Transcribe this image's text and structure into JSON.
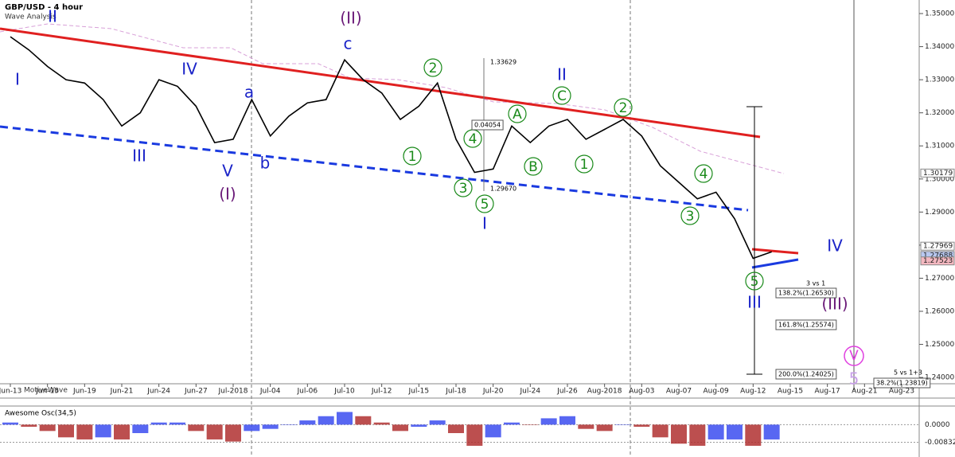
{
  "header": {
    "title": "GBP/USD - 4 hour",
    "subtitle": "Wave Analysis",
    "watermark": "MotiveWave",
    "indicator": "Awesome Osc(34,5)"
  },
  "chart_data": [
    {
      "type": "line",
      "categories": [
        "Jun-13",
        null,
        "Jun-15",
        null,
        "Jun-19",
        null,
        "Jun-21",
        null,
        "Jun-24",
        null,
        "Jun-27",
        null,
        "Jul-2018",
        null,
        "Jul-04",
        null,
        "Jul-06",
        null,
        "Jul-10",
        null,
        "Jul-12",
        null,
        "Jul-15",
        null,
        "Jul-18",
        null,
        "Jul-20",
        null,
        "Jul-24",
        null,
        "Jul-26",
        null,
        "Aug-2018",
        null,
        "Aug-03",
        null,
        "Aug-07",
        null,
        "Aug-09",
        null,
        "Aug-12",
        null,
        "Aug-15",
        null,
        "Aug-17",
        null,
        "Aug-21",
        null,
        "Aug-23"
      ],
      "series": [
        {
          "color": "#000000",
          "values": [
            1.343,
            1.339,
            1.334,
            1.33,
            1.329,
            1.324,
            1.316,
            1.32,
            1.33,
            1.328,
            1.322,
            1.311,
            1.312,
            1.324,
            1.313,
            1.319,
            1.323,
            1.324,
            1.336,
            1.33,
            1.326,
            1.318,
            1.322,
            1.329,
            1.312,
            1.302,
            1.303,
            1.316,
            1.311,
            1.316,
            1.318,
            1.312,
            1.315,
            1.318,
            1.313,
            1.304,
            1.299,
            1.294,
            1.296,
            1.288,
            1.276,
            1.278,
            null,
            null,
            null,
            null,
            null,
            null,
            null
          ]
        }
      ],
      "ylim": [
        1.2381,
        1.3541
      ],
      "yticks": [
        {
          "value": 1.24,
          "label": "1.24000"
        },
        {
          "value": 1.25,
          "label": "1.25000"
        },
        {
          "value": 1.26,
          "label": "1.26000"
        },
        {
          "value": 1.27,
          "label": "1.27000"
        },
        {
          "value": 1.28,
          "label": "1.28000"
        },
        {
          "value": 1.29,
          "label": "1.29000"
        },
        {
          "value": 1.3,
          "label": "1.30000"
        },
        {
          "value": 1.31,
          "label": "1.31000"
        },
        {
          "value": 1.32,
          "label": "1.32000"
        },
        {
          "value": 1.33,
          "label": "1.33000"
        },
        {
          "value": 1.34,
          "label": "1.34000"
        },
        {
          "value": 1.35,
          "label": "1.35000"
        }
      ],
      "price_markers": [
        1.30179,
        1.27969,
        1.27688,
        1.27523
      ],
      "price_marker_colors": [
        "#ffffff",
        "#ffffff",
        "#b8c8f0",
        "#f4b8c0"
      ],
      "annotations": [
        "I",
        "II",
        "III",
        "IV",
        "V",
        "a",
        "b",
        "c",
        "I",
        "II",
        "III",
        "IV",
        "(I)",
        "(II)",
        "(III)",
        "V",
        "5",
        "2",
        "4",
        "1",
        "3",
        "5",
        "A",
        "B",
        "C",
        "1",
        "2",
        "4",
        "3",
        "5",
        "138.2%(1.26530)",
        "161.8%(1.25574)",
        "200.0%(1.24025)",
        "3 vs 1",
        "5 vs 1+3",
        "38.2%(1.23819)",
        "1.33629",
        "0.04054",
        "1.29670"
      ]
    },
    {
      "type": "bar",
      "values": [
        0.001,
        -0.001,
        -0.003,
        -0.006,
        -0.007,
        -0.006,
        -0.007,
        -0.004,
        0.001,
        0.001,
        -0.003,
        -0.007,
        -0.008,
        -0.003,
        -0.002,
        0.0,
        0.002,
        0.004,
        0.006,
        0.004,
        0.001,
        -0.003,
        -0.001,
        0.002,
        -0.004,
        -0.01,
        -0.006,
        0.001,
        0.0,
        0.003,
        0.004,
        -0.002,
        -0.003,
        0.0,
        -0.001,
        -0.006,
        -0.009,
        -0.01,
        -0.007,
        -0.007,
        -0.01,
        -0.007,
        null,
        null,
        null,
        null,
        null,
        null,
        null
      ],
      "colors": [
        "#3b4cf0",
        "#b03030"
      ],
      "ylim": [
        -0.0153,
        0.0088
      ],
      "yticks": [
        {
          "value": 0,
          "label": "0.0000"
        },
        -0.00832
      ]
    }
  ]
}
